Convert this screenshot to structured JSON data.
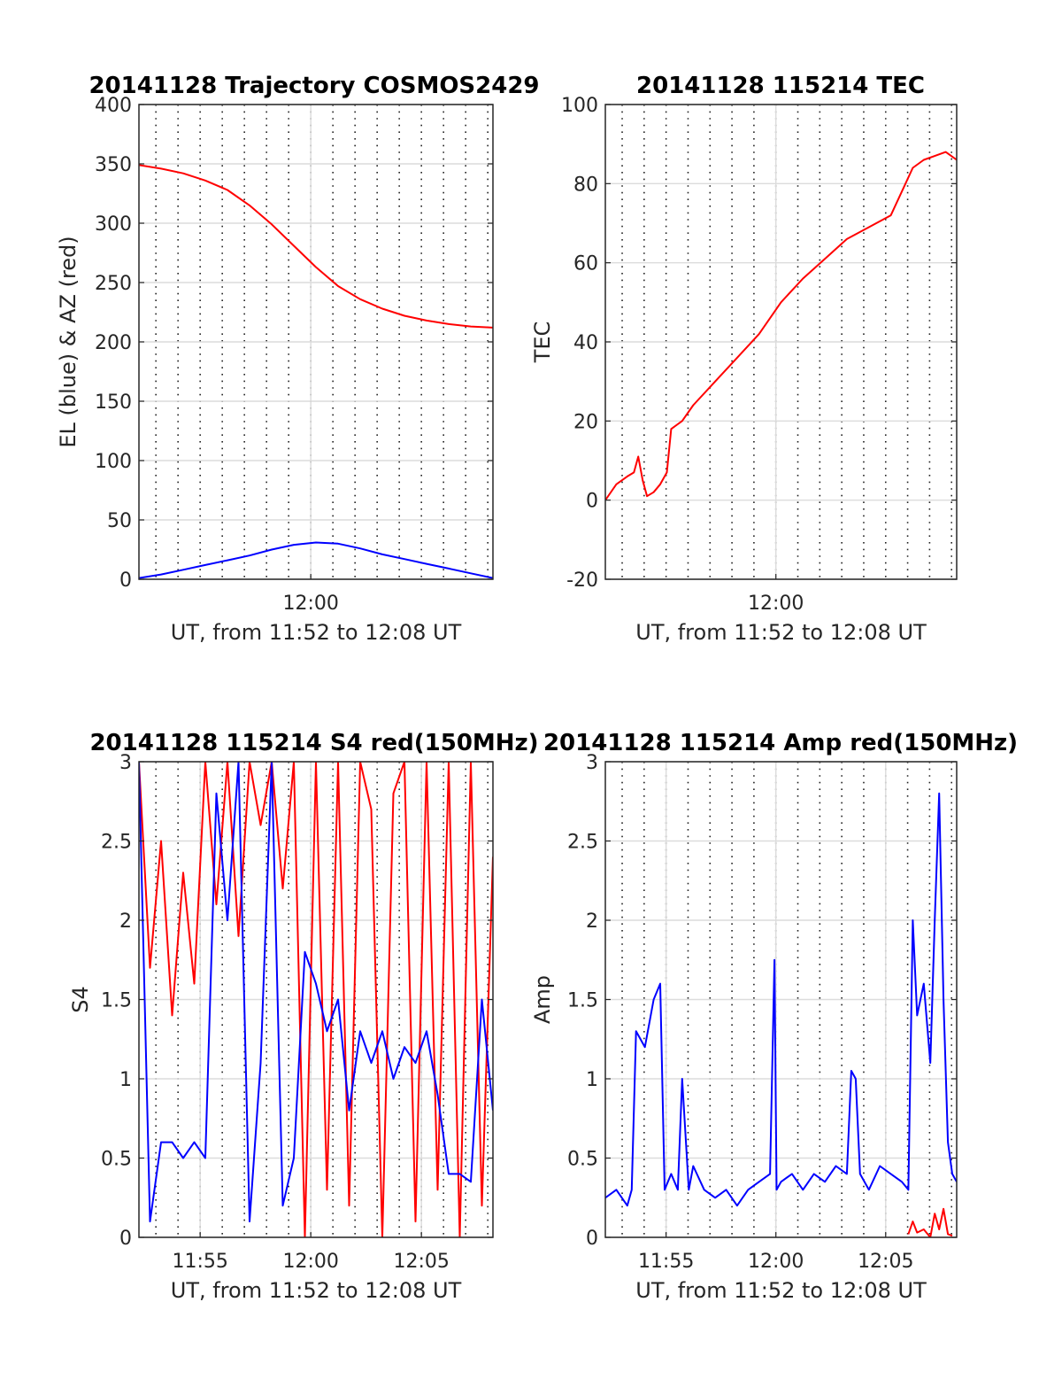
{
  "figure": {
    "background": "#ffffff",
    "series_colors": {
      "red": "#ff0000",
      "blue": "#0000ff"
    }
  },
  "chart_data": [
    {
      "type": "line",
      "title": "20141128 Trajectory COSMOS2429",
      "xlabel": "UT, from 11:52 to 12:08 UT",
      "ylabel": "EL (blue) & AZ (red)",
      "xlim": [
        "11:52:14",
        "12:08:14"
      ],
      "ylim": [
        0,
        400
      ],
      "yticks": [
        "0",
        "50",
        "100",
        "150",
        "200",
        "250",
        "300",
        "350",
        "400"
      ],
      "xticks": [
        {
          "t": "12:00",
          "label": "12:00"
        }
      ],
      "grid": "on (solid major y, dotted minor x every minute)",
      "x_unit": "minutes after 11:52:14 UT",
      "series": [
        {
          "color": "#ff0000",
          "x": [
            0,
            1,
            2,
            3,
            4,
            5,
            6,
            7,
            8,
            9,
            10,
            11,
            12,
            13,
            14,
            15,
            16
          ],
          "values": [
            349,
            346,
            342,
            336,
            328,
            315,
            299,
            281,
            263,
            247,
            236,
            228,
            222,
            218,
            215,
            213,
            212
          ]
        },
        {
          "color": "#0000ff",
          "x": [
            0,
            1,
            2,
            3,
            4,
            5,
            6,
            7,
            8,
            9,
            10,
            11,
            12,
            13,
            14,
            15,
            16
          ],
          "values": [
            1,
            4,
            8,
            12,
            16,
            20,
            25,
            29,
            31,
            30,
            26,
            21,
            17,
            13,
            9,
            5,
            1
          ]
        }
      ]
    },
    {
      "type": "line",
      "title": "20141128 115214 TEC",
      "xlabel": "UT, from 11:52 to 12:08 UT",
      "ylabel": "TEC",
      "xlim": [
        "11:52:14",
        "12:08:14"
      ],
      "ylim": [
        -20,
        100
      ],
      "yticks": [
        "-20",
        "0",
        "20",
        "40",
        "60",
        "80",
        "100"
      ],
      "xticks": [
        {
          "t": "12:00",
          "label": "12:00"
        }
      ],
      "grid": "on (solid major, dotted minor x every minute)",
      "x_unit": "minutes after 11:52:14 UT",
      "series": [
        {
          "color": "#ff0000",
          "x": [
            0,
            0.5,
            1,
            1.3,
            1.5,
            1.7,
            1.9,
            2.2,
            2.5,
            2.8,
            3,
            3.5,
            4,
            5,
            6,
            7,
            8,
            9,
            10,
            11,
            12,
            13,
            13.5,
            14,
            14.5,
            15,
            15.5,
            16
          ],
          "values": [
            0,
            4,
            6,
            7,
            11,
            5,
            1,
            2,
            4,
            7,
            18,
            20,
            24,
            30,
            36,
            42,
            50,
            56,
            61,
            66,
            69,
            72,
            78,
            84,
            86,
            87,
            88,
            86
          ]
        }
      ]
    },
    {
      "type": "line",
      "title": "20141128 115214 S4 red(150MHz)",
      "xlabel": "UT, from 11:52 to 12:08 UT",
      "ylabel": "S4",
      "xlim": [
        "11:52:14",
        "12:08:14"
      ],
      "ylim": [
        0,
        3
      ],
      "yticks": [
        "0",
        "0.5",
        "1",
        "1.5",
        "2",
        "2.5",
        "3"
      ],
      "xticks": [
        {
          "t": "11:55",
          "label": "11:55"
        },
        {
          "t": "12:00",
          "label": "12:00"
        },
        {
          "t": "12:05",
          "label": "12:05"
        }
      ],
      "grid": "on (solid major, dotted minor x every minute)",
      "x_unit": "minutes after 11:52:14 UT",
      "series": [
        {
          "color": "#ff0000",
          "x": [
            0,
            0.5,
            1,
            1.5,
            2,
            2.5,
            3,
            3.5,
            4,
            4.5,
            5,
            5.5,
            6,
            6.5,
            7,
            7.5,
            8,
            8.5,
            9,
            9.5,
            10,
            10.5,
            11,
            11.5,
            12,
            12.5,
            13,
            13.5,
            14,
            14.5,
            15,
            15.5,
            16
          ],
          "values": [
            3,
            1.7,
            2.5,
            1.4,
            2.3,
            1.6,
            3,
            2.1,
            3,
            1.9,
            3,
            2.6,
            3,
            2.2,
            3,
            0,
            3,
            0.3,
            3,
            0.2,
            3,
            2.7,
            0,
            2.8,
            3,
            0.1,
            3,
            0.3,
            3,
            0,
            3,
            0.2,
            2.4
          ]
        },
        {
          "color": "#0000ff",
          "x": [
            0,
            0.5,
            1,
            1.5,
            2,
            2.5,
            3,
            3.5,
            4,
            4.5,
            5,
            5.5,
            6,
            6.5,
            7,
            7.5,
            8,
            8.5,
            9,
            9.5,
            10,
            10.5,
            11,
            11.5,
            12,
            12.5,
            13,
            13.5,
            14,
            14.5,
            15,
            15.5,
            16
          ],
          "values": [
            3,
            0.1,
            0.6,
            0.6,
            0.5,
            0.6,
            0.5,
            2.8,
            2,
            3,
            0.1,
            1.1,
            3,
            0.2,
            0.5,
            1.8,
            1.6,
            1.3,
            1.5,
            0.8,
            1.3,
            1.1,
            1.3,
            1.0,
            1.2,
            1.1,
            1.3,
            0.9,
            0.4,
            0.4,
            0.35,
            1.5,
            0.8
          ]
        }
      ]
    },
    {
      "type": "line",
      "title": "20141128 115214 Amp red(150MHz)",
      "xlabel": "UT, from 11:52 to 12:08 UT",
      "ylabel": "Amp",
      "xlim": [
        "11:52:14",
        "12:08:14"
      ],
      "ylim": [
        0,
        3
      ],
      "yticks": [
        "0",
        "0.5",
        "1",
        "1.5",
        "2",
        "2.5",
        "3"
      ],
      "xticks": [
        {
          "t": "11:55",
          "label": "11:55"
        },
        {
          "t": "12:00",
          "label": "12:00"
        },
        {
          "t": "12:05",
          "label": "12:05"
        }
      ],
      "grid": "on (solid major, dotted minor x every minute)",
      "x_unit": "minutes after 11:52:14 UT",
      "series": [
        {
          "color": "#0000ff",
          "x": [
            0,
            0.5,
            1,
            1.2,
            1.4,
            1.8,
            2.2,
            2.5,
            2.7,
            3,
            3.3,
            3.5,
            3.8,
            4,
            4.5,
            5,
            5.5,
            6,
            6.5,
            7,
            7.5,
            7.7,
            7.8,
            8,
            8.5,
            9,
            9.5,
            10,
            10.5,
            11,
            11.2,
            11.4,
            11.6,
            12,
            12.5,
            13,
            13.5,
            13.8,
            14,
            14.2,
            14.5,
            14.8,
            15,
            15.2,
            15.4,
            15.6,
            15.8,
            16
          ],
          "values": [
            0.25,
            0.3,
            0.2,
            0.3,
            1.3,
            1.2,
            1.5,
            1.6,
            0.3,
            0.4,
            0.3,
            1.0,
            0.3,
            0.45,
            0.3,
            0.25,
            0.3,
            0.2,
            0.3,
            0.35,
            0.4,
            1.75,
            0.3,
            0.35,
            0.4,
            0.3,
            0.4,
            0.35,
            0.45,
            0.4,
            1.05,
            1.0,
            0.4,
            0.3,
            0.45,
            0.4,
            0.35,
            0.3,
            2.0,
            1.4,
            1.6,
            1.1,
            2.0,
            2.8,
            1.5,
            0.6,
            0.4,
            0.35
          ]
        },
        {
          "color": "#ff0000",
          "x": [
            13.8,
            14,
            14.2,
            14.5,
            14.8,
            15,
            15.2,
            15.4,
            15.6,
            15.8
          ],
          "values": [
            0.02,
            0.1,
            0.03,
            0.05,
            0.0,
            0.15,
            0.05,
            0.18,
            0.02,
            0.01
          ]
        }
      ]
    }
  ]
}
